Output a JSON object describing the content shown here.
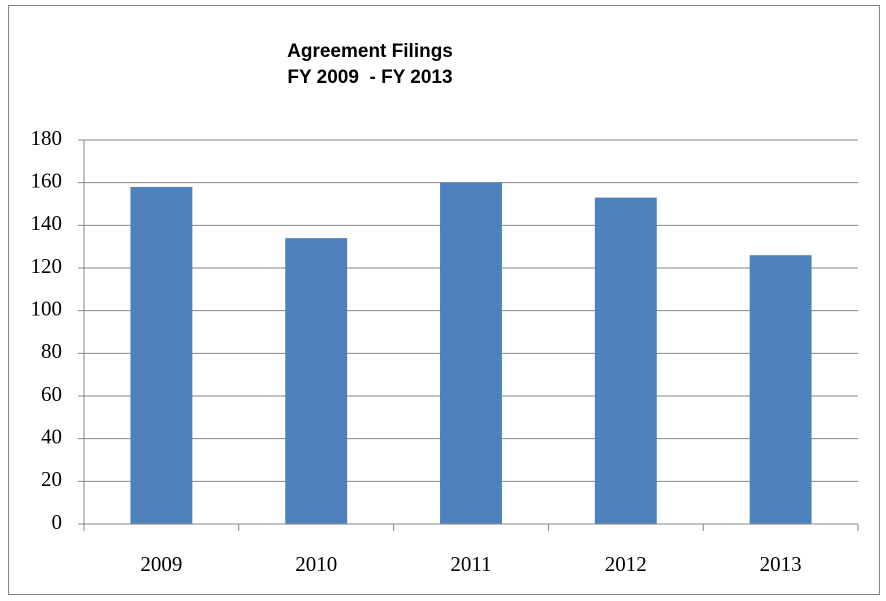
{
  "chart_data": {
    "type": "bar",
    "title": "Agreement Filings",
    "subtitle": "FY 2009  - FY 2013",
    "categories": [
      "2009",
      "2010",
      "2011",
      "2012",
      "2013"
    ],
    "values": [
      158,
      134,
      160,
      153,
      126
    ],
    "color": "#4f81bd",
    "ylim": [
      0,
      180
    ],
    "yticks": [
      0,
      20,
      40,
      60,
      80,
      100,
      120,
      140,
      160,
      180
    ],
    "grid": true
  }
}
